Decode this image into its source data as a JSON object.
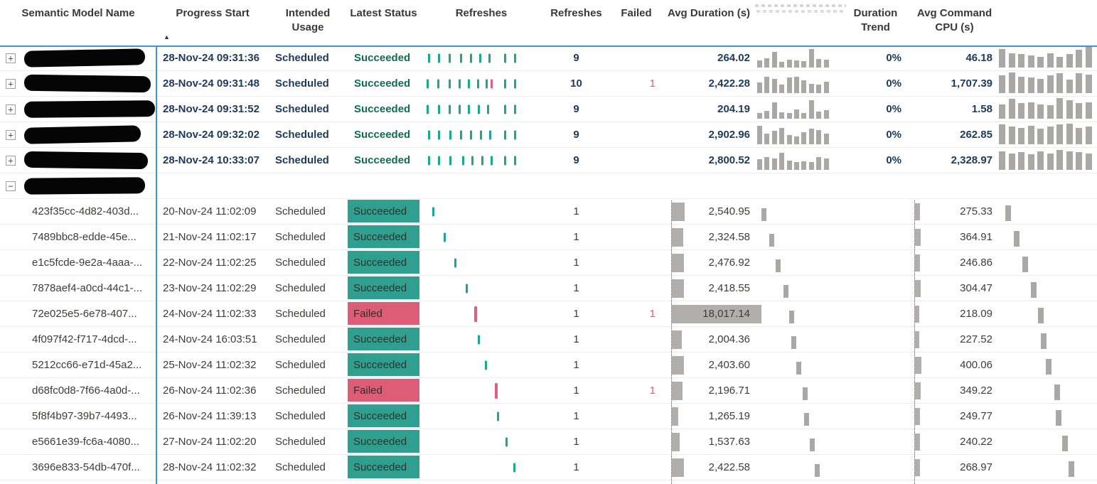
{
  "colors": {
    "accent_blue": "#4193d8",
    "succeeded_badge": "#2fa08f",
    "failed_badge": "#dd5c78",
    "tick_teal": "#1ba78f",
    "tick_red": "#dd6080",
    "bar_gray": "#a9a8a7",
    "parent_text": "#1d3a5c",
    "failed_text": "#d4607a"
  },
  "header": {
    "semantic_model_name": "Semantic Model Name",
    "progress_start": "Progress Start",
    "intended_usage": "Intended Usage",
    "latest_status": "Latest Status",
    "refreshes_chart": "Refreshes",
    "refreshes_count": "Refreshes",
    "failed": "Failed",
    "avg_duration": "Avg Duration (s)",
    "duration_trend": "Duration Trend",
    "avg_command_cpu": "Avg Command CPU (s)",
    "sort_icon": "ascending-arrow"
  },
  "rows": [
    {
      "type": "parent",
      "expander": "+",
      "name_redacted": true,
      "scribble_w": 170,
      "progress": "28-Nov-24 09:31:36",
      "usage": "Scheduled",
      "status": "Succeeded",
      "ticks": [
        {
          "f": 0.03
        },
        {
          "f": 0.12
        },
        {
          "f": 0.21
        },
        {
          "f": 0.31
        },
        {
          "f": 0.4
        },
        {
          "f": 0.48
        },
        {
          "f": 0.56
        },
        {
          "f": 0.7
        },
        {
          "f": 0.79
        }
      ],
      "refreshes": "9",
      "failed": "",
      "avg_duration": "264.02",
      "dur_bars": [
        0.38,
        0.5,
        0.82,
        0.3,
        0.42,
        0.38,
        0.32,
        0.95,
        0.45,
        0.4
      ],
      "trend": "0%",
      "avg_cpu": "46.18",
      "cpu_bars": [
        0.85,
        0.65,
        0.6,
        0.55,
        0.5,
        0.65,
        0.5,
        0.6,
        0.8,
        0.95
      ]
    },
    {
      "type": "parent",
      "expander": "+",
      "name_redacted": true,
      "scribble_w": 178,
      "progress": "28-Nov-24 09:31:48",
      "usage": "Scheduled",
      "status": "Succeeded",
      "ticks": [
        {
          "f": 0.02
        },
        {
          "f": 0.11
        },
        {
          "f": 0.21
        },
        {
          "f": 0.3
        },
        {
          "f": 0.38
        },
        {
          "f": 0.46
        },
        {
          "f": 0.54
        },
        {
          "f": 0.58,
          "c": "red"
        },
        {
          "f": 0.7
        },
        {
          "f": 0.79
        }
      ],
      "refreshes": "10",
      "failed": "1",
      "avg_duration": "2,422.28",
      "dur_bars": [
        0.55,
        0.85,
        0.75,
        0.45,
        0.8,
        0.85,
        0.65,
        0.5,
        0.45,
        0.6
      ],
      "trend": "0%",
      "avg_cpu": "1,707.39",
      "cpu_bars": [
        0.8,
        0.95,
        0.75,
        0.7,
        0.65,
        0.8,
        0.9,
        0.6,
        0.9,
        0.85
      ]
    },
    {
      "type": "parent",
      "expander": "+",
      "name_redacted": true,
      "scribble_w": 184,
      "progress": "28-Nov-24 09:31:52",
      "usage": "Scheduled",
      "status": "Succeeded",
      "ticks": [
        {
          "f": 0.02
        },
        {
          "f": 0.12
        },
        {
          "f": 0.21
        },
        {
          "f": 0.3
        },
        {
          "f": 0.38
        },
        {
          "f": 0.47
        },
        {
          "f": 0.55
        },
        {
          "f": 0.7
        },
        {
          "f": 0.79
        }
      ],
      "refreshes": "9",
      "failed": "",
      "avg_duration": "204.19",
      "dur_bars": [
        0.3,
        0.42,
        0.85,
        0.33,
        0.3,
        0.48,
        0.28,
        0.95,
        0.38,
        0.45
      ],
      "trend": "0%",
      "avg_cpu": "1.58",
      "cpu_bars": [
        0.65,
        0.9,
        0.7,
        0.75,
        0.65,
        0.6,
        0.95,
        0.85,
        0.7,
        0.75
      ]
    },
    {
      "type": "parent",
      "expander": "+",
      "name_redacted": true,
      "scribble_w": 164,
      "progress": "28-Nov-24 09:32:02",
      "usage": "Scheduled",
      "status": "Succeeded",
      "ticks": [
        {
          "f": 0.03
        },
        {
          "f": 0.12
        },
        {
          "f": 0.22
        },
        {
          "f": 0.31
        },
        {
          "f": 0.4
        },
        {
          "f": 0.49
        },
        {
          "f": 0.57
        },
        {
          "f": 0.7
        },
        {
          "f": 0.79
        }
      ],
      "refreshes": "9",
      "failed": "",
      "avg_duration": "2,902.96",
      "dur_bars": [
        0.95,
        0.55,
        0.7,
        0.85,
        0.5,
        0.42,
        0.62,
        0.8,
        0.75,
        0.55
      ],
      "trend": "0%",
      "avg_cpu": "262.85",
      "cpu_bars": [
        0.9,
        0.8,
        0.75,
        0.85,
        0.7,
        0.8,
        0.9,
        0.95,
        0.75,
        0.8
      ]
    },
    {
      "type": "parent",
      "expander": "+",
      "name_redacted": true,
      "scribble_w": 174,
      "progress": "28-Nov-24 10:33:07",
      "usage": "Scheduled",
      "status": "Succeeded",
      "ticks": [
        {
          "f": 0.03
        },
        {
          "f": 0.12
        },
        {
          "f": 0.22
        },
        {
          "f": 0.33
        },
        {
          "f": 0.41
        },
        {
          "f": 0.5
        },
        {
          "f": 0.58
        },
        {
          "f": 0.7
        },
        {
          "f": 0.79
        }
      ],
      "refreshes": "9",
      "failed": "",
      "avg_duration": "2,800.52",
      "dur_bars": [
        0.55,
        0.65,
        0.6,
        0.9,
        0.5,
        0.4,
        0.45,
        0.4,
        0.65,
        0.6
      ],
      "trend": "0%",
      "avg_cpu": "2,328.97",
      "cpu_bars": [
        0.85,
        0.75,
        0.8,
        0.7,
        0.85,
        0.75,
        0.9,
        0.85,
        0.8,
        0.75
      ]
    },
    {
      "type": "group",
      "expander": "−",
      "name_redacted": true,
      "scribble_w": 170
    },
    {
      "type": "child",
      "name": "423f35cc-4d82-403d...",
      "progress": "20-Nov-24 11:02:09",
      "usage": "Scheduled",
      "status": "Succeeded",
      "f": 0.07,
      "refreshes": "1",
      "failed": "",
      "avg_duration": "2,540.95",
      "dur_n": 2540.95,
      "trend": "",
      "avg_cpu": "275.33",
      "cpu_n": 275.33
    },
    {
      "type": "child",
      "name": "7489bbc8-edde-45e...",
      "progress": "21-Nov-24 11:02:17",
      "usage": "Scheduled",
      "status": "Succeeded",
      "f": 0.17,
      "refreshes": "1",
      "failed": "",
      "avg_duration": "2,324.58",
      "dur_n": 2324.58,
      "trend": "",
      "avg_cpu": "364.91",
      "cpu_n": 364.91
    },
    {
      "type": "child",
      "name": "e1c5fcde-9e2a-4aaa-...",
      "progress": "22-Nov-24 11:02:25",
      "usage": "Scheduled",
      "status": "Succeeded",
      "f": 0.26,
      "refreshes": "1",
      "failed": "",
      "avg_duration": "2,476.92",
      "dur_n": 2476.92,
      "trend": "",
      "avg_cpu": "246.86",
      "cpu_n": 246.86
    },
    {
      "type": "child",
      "name": "7878aef4-a0cd-44c1-...",
      "progress": "23-Nov-24 11:02:29",
      "usage": "Scheduled",
      "status": "Succeeded",
      "f": 0.36,
      "refreshes": "1",
      "failed": "",
      "avg_duration": "2,418.55",
      "dur_n": 2418.55,
      "trend": "",
      "avg_cpu": "304.47",
      "cpu_n": 304.47
    },
    {
      "type": "child",
      "name": "72e025e5-6e78-407...",
      "progress": "24-Nov-24 11:02:33",
      "usage": "Scheduled",
      "status": "Failed",
      "f": 0.44,
      "tick_color": "red",
      "refreshes": "1",
      "failed": "1",
      "avg_duration": "18,017.14",
      "dur_n": 18017.14,
      "trend": "",
      "avg_cpu": "218.09",
      "cpu_n": 218.09
    },
    {
      "type": "child",
      "name": "4f097f42-f717-4dcd-...",
      "progress": "24-Nov-24 16:03:51",
      "usage": "Scheduled",
      "status": "Succeeded",
      "f": 0.47,
      "refreshes": "1",
      "failed": "",
      "avg_duration": "2,004.36",
      "dur_n": 2004.36,
      "trend": "",
      "avg_cpu": "227.52",
      "cpu_n": 227.52
    },
    {
      "type": "child",
      "name": "5212cc66-e71d-45a2...",
      "progress": "25-Nov-24 11:02:32",
      "usage": "Scheduled",
      "status": "Succeeded",
      "f": 0.53,
      "refreshes": "1",
      "failed": "",
      "avg_duration": "2,403.60",
      "dur_n": 2403.6,
      "trend": "",
      "avg_cpu": "400.06",
      "cpu_n": 400.06
    },
    {
      "type": "child",
      "name": "d68fc0d8-7f66-4a0d-...",
      "progress": "26-Nov-24 11:02:36",
      "usage": "Scheduled",
      "status": "Failed",
      "f": 0.62,
      "tick_color": "red",
      "refreshes": "1",
      "failed": "1",
      "avg_duration": "2,196.71",
      "dur_n": 2196.71,
      "trend": "",
      "avg_cpu": "349.22",
      "cpu_n": 349.22
    },
    {
      "type": "child",
      "name": "5f8f4b97-39b7-4493...",
      "progress": "26-Nov-24 11:39:13",
      "usage": "Scheduled",
      "status": "Succeeded",
      "f": 0.64,
      "refreshes": "1",
      "failed": "",
      "avg_duration": "1,265.19",
      "dur_n": 1265.19,
      "trend": "",
      "avg_cpu": "249.77",
      "cpu_n": 249.77
    },
    {
      "type": "child",
      "name": "e5661e39-fc6a-4080...",
      "progress": "27-Nov-24 11:02:20",
      "usage": "Scheduled",
      "status": "Succeeded",
      "f": 0.71,
      "refreshes": "1",
      "failed": "",
      "avg_duration": "1,537.63",
      "dur_n": 1537.63,
      "trend": "",
      "avg_cpu": "240.22",
      "cpu_n": 240.22
    },
    {
      "type": "child",
      "name": "3696e833-54db-470f...",
      "progress": "28-Nov-24 11:02:32",
      "usage": "Scheduled",
      "status": "Succeeded",
      "f": 0.78,
      "refreshes": "1",
      "failed": "",
      "avg_duration": "2,422.58",
      "dur_n": 2422.58,
      "trend": "",
      "avg_cpu": "268.97",
      "cpu_n": 268.97
    }
  ],
  "scales": {
    "duration_bar_max": 18017.14,
    "cpu_bar_max": 400.06
  }
}
